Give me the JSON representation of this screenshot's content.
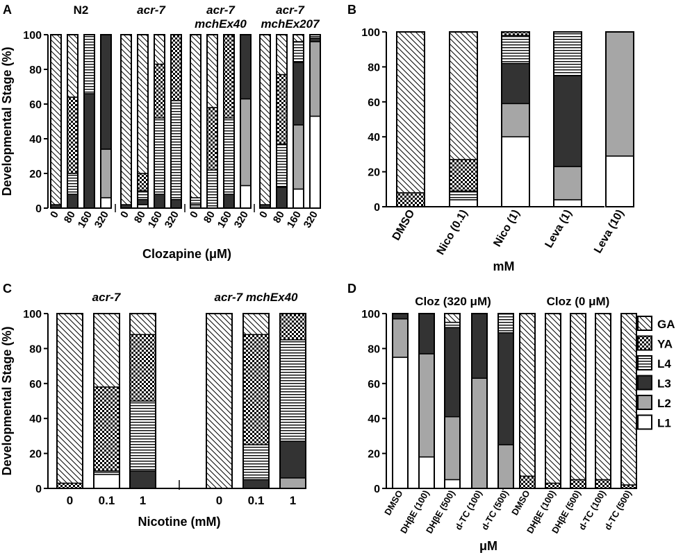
{
  "legend": [
    {
      "key": "GA",
      "label": "GA"
    },
    {
      "key": "YA",
      "label": "YA"
    },
    {
      "key": "L4",
      "label": "L4"
    },
    {
      "key": "L3",
      "label": "L3"
    },
    {
      "key": "L2",
      "label": "L2"
    },
    {
      "key": "L1",
      "label": "L1"
    }
  ],
  "chart_data": [
    {
      "panel": "A",
      "type": "bar",
      "stacked": true,
      "ylabel": "Developmental Stage (%)",
      "xlabel": "Clozapine (μM)",
      "ylim": [
        0,
        100
      ],
      "yticks": [
        0,
        20,
        40,
        60,
        80,
        100
      ],
      "stack_order": [
        "L1",
        "L2",
        "L3",
        "L4",
        "YA",
        "GA"
      ],
      "groups": [
        {
          "label": [
            "N2"
          ],
          "italic": false,
          "bars": [
            {
              "x": "0",
              "L1": 0,
              "L2": 0,
              "L3": 2,
              "L4": 0,
              "YA": 0,
              "GA": 98
            },
            {
              "x": "80",
              "L1": 0,
              "L2": 0,
              "L3": 8,
              "L4": 12,
              "YA": 44,
              "GA": 36
            },
            {
              "x": "160",
              "L1": 0,
              "L2": 0,
              "L3": 66,
              "L4": 34,
              "YA": 0,
              "GA": 0
            },
            {
              "x": "320",
              "L1": 6,
              "L2": 28,
              "L3": 66,
              "L4": 0,
              "YA": 0,
              "GA": 0
            }
          ]
        },
        {
          "label": [
            "acr-7"
          ],
          "italic": true,
          "bars": [
            {
              "x": "0",
              "L1": 0,
              "L2": 0,
              "L3": 2,
              "L4": 0,
              "YA": 0,
              "GA": 98
            },
            {
              "x": "80",
              "L1": 2,
              "L2": 0,
              "L3": 3,
              "L4": 5,
              "YA": 10,
              "GA": 80
            },
            {
              "x": "160",
              "L1": 0,
              "L2": 0,
              "L3": 8,
              "L4": 44,
              "YA": 31,
              "GA": 17
            },
            {
              "x": "320",
              "L1": 0,
              "L2": 0,
              "L3": 5,
              "L4": 57,
              "YA": 38,
              "GA": 0
            }
          ]
        },
        {
          "label": [
            "acr-7",
            "mchEx40"
          ],
          "italic": true,
          "bars": [
            {
              "x": "0",
              "L1": 0,
              "L2": 2,
              "L3": 0,
              "L4": 4,
              "YA": 0,
              "GA": 94
            },
            {
              "x": "80",
              "L1": 0,
              "L2": 0,
              "L3": 0,
              "L4": 22,
              "YA": 36,
              "GA": 42
            },
            {
              "x": "160",
              "L1": 0,
              "L2": 0,
              "L3": 8,
              "L4": 44,
              "YA": 48,
              "GA": 0
            },
            {
              "x": "320",
              "L1": 13,
              "L2": 50,
              "L3": 37,
              "L4": 0,
              "YA": 0,
              "GA": 0
            }
          ]
        },
        {
          "label": [
            "acr-7",
            "mchEx207"
          ],
          "italic": true,
          "bars": [
            {
              "x": "0",
              "L1": 0,
              "L2": 0,
              "L3": 2,
              "L4": 0,
              "YA": 0,
              "GA": 98
            },
            {
              "x": "80",
              "L1": 0,
              "L2": 0,
              "L3": 12,
              "L4": 25,
              "YA": 40,
              "GA": 23
            },
            {
              "x": "160",
              "L1": 11,
              "L2": 37,
              "L3": 36,
              "L4": 12,
              "YA": 0,
              "GA": 4
            },
            {
              "x": "320",
              "L1": 53,
              "L2": 43,
              "L3": 2,
              "L4": 2,
              "YA": 0,
              "GA": 0
            }
          ]
        }
      ]
    },
    {
      "panel": "B",
      "type": "bar",
      "stacked": true,
      "xlabel": "mM",
      "ylim": [
        0,
        100
      ],
      "yticks": [
        0,
        20,
        40,
        60,
        80,
        100
      ],
      "stack_order": [
        "L1",
        "L2",
        "L3",
        "L4",
        "YA",
        "GA"
      ],
      "categories": [
        "DMSO",
        "Nico (0.1)",
        "Nico (1)",
        "Leva (1)",
        "Leva (10)"
      ],
      "bars": [
        {
          "L1": 0,
          "L2": 0,
          "L3": 0,
          "L4": 0,
          "YA": 8,
          "GA": 92
        },
        {
          "L1": 4,
          "L2": 0,
          "L3": 0,
          "L4": 5,
          "YA": 18,
          "GA": 73
        },
        {
          "L1": 40,
          "L2": 19,
          "L3": 23,
          "L4": 16,
          "YA": 2,
          "GA": 0
        },
        {
          "L1": 4,
          "L2": 19,
          "L3": 52,
          "L4": 25,
          "YA": 0,
          "GA": 0
        },
        {
          "L1": 29,
          "L2": 71,
          "L3": 0,
          "L4": 0,
          "YA": 0,
          "GA": 0
        }
      ]
    },
    {
      "panel": "C",
      "type": "bar",
      "stacked": true,
      "ylabel": "Developmental Stage (%)",
      "xlabel": "Nicotine (mM)",
      "ylim": [
        0,
        100
      ],
      "yticks": [
        0,
        20,
        40,
        60,
        80,
        100
      ],
      "stack_order": [
        "L1",
        "L2",
        "L3",
        "L4",
        "YA",
        "GA"
      ],
      "groups": [
        {
          "label": [
            "acr-7"
          ],
          "italic": true,
          "bars": [
            {
              "x": "0",
              "L1": 0,
              "L2": 0,
              "L3": 0,
              "L4": 0,
              "YA": 3,
              "GA": 97
            },
            {
              "x": "0.1",
              "L1": 8,
              "L2": 0,
              "L3": 0,
              "L4": 2,
              "YA": 48,
              "GA": 42
            },
            {
              "x": "1",
              "L1": 0,
              "L2": 0,
              "L3": 10,
              "L4": 40,
              "YA": 38,
              "GA": 12
            }
          ]
        },
        {
          "label": [
            "acr-7 mchEx40"
          ],
          "italic": true,
          "bars": [
            {
              "x": "0",
              "L1": 0,
              "L2": 0,
              "L3": 0,
              "L4": 0,
              "YA": 0,
              "GA": 100
            },
            {
              "x": "0.1",
              "L1": 0,
              "L2": 0,
              "L3": 5,
              "L4": 20,
              "YA": 63,
              "GA": 12
            },
            {
              "x": "1",
              "L1": 0,
              "L2": 6,
              "L3": 21,
              "L4": 58,
              "YA": 15,
              "GA": 0
            }
          ]
        }
      ]
    },
    {
      "panel": "D",
      "type": "bar",
      "stacked": true,
      "xlabel": "μM",
      "ylim": [
        0,
        100
      ],
      "yticks": [
        0,
        20,
        40,
        60,
        80,
        100
      ],
      "stack_order": [
        "L1",
        "L2",
        "L3",
        "L4",
        "YA",
        "GA"
      ],
      "groups": [
        {
          "label": [
            "Cloz (320 μM)"
          ],
          "italic": false,
          "bars": [
            {
              "x": "DMSO",
              "L1": 75,
              "L2": 22,
              "L3": 3,
              "L4": 0,
              "YA": 0,
              "GA": 0
            },
            {
              "x": "DHβE (100)",
              "L1": 18,
              "L2": 59,
              "L3": 23,
              "L4": 0,
              "YA": 0,
              "GA": 0
            },
            {
              "x": "DHβE (500)",
              "L1": 5,
              "L2": 36,
              "L3": 51,
              "L4": 3,
              "YA": 0,
              "GA": 5
            },
            {
              "x": "d-TC (100)",
              "L1": 0,
              "L2": 63,
              "L3": 37,
              "L4": 0,
              "YA": 0,
              "GA": 0
            },
            {
              "x": "d-TC (500)",
              "L1": 0,
              "L2": 25,
              "L3": 64,
              "L4": 11,
              "YA": 0,
              "GA": 0
            }
          ]
        },
        {
          "label": [
            "Cloz (0 μM)"
          ],
          "italic": false,
          "bars": [
            {
              "x": "DMSO",
              "L1": 0,
              "L2": 0,
              "L3": 0,
              "L4": 0,
              "YA": 7,
              "GA": 93
            },
            {
              "x": "DHβE (100)",
              "L1": 0,
              "L2": 0,
              "L3": 0,
              "L4": 0,
              "YA": 3,
              "GA": 97
            },
            {
              "x": "DHβE (500)",
              "L1": 0,
              "L2": 0,
              "L3": 0,
              "L4": 0,
              "YA": 5,
              "GA": 95
            },
            {
              "x": "d-TC (100)",
              "L1": 0,
              "L2": 0,
              "L3": 0,
              "L4": 0,
              "YA": 5,
              "GA": 95
            },
            {
              "x": "d-TC (500)",
              "L1": 0,
              "L2": 0,
              "L3": 0,
              "L4": 0,
              "YA": 2,
              "GA": 98
            }
          ]
        }
      ]
    }
  ]
}
